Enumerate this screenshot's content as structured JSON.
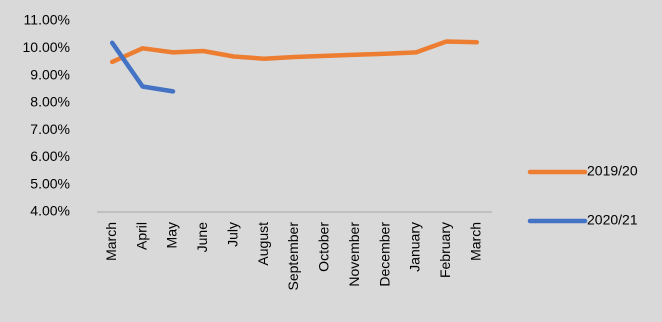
{
  "chart_data": {
    "type": "line",
    "categories": [
      "March",
      "April",
      "May",
      "June",
      "July",
      "August",
      "September",
      "October",
      "November",
      "December",
      "January",
      "February",
      "March"
    ],
    "series": [
      {
        "name": "2019/20",
        "color": "#ed7d31",
        "values": [
          9.5,
          10.0,
          9.85,
          9.9,
          9.7,
          9.62,
          9.68,
          9.72,
          9.76,
          9.8,
          9.85,
          10.25,
          10.22
        ]
      },
      {
        "name": "2020/21",
        "color": "#4472c4",
        "values": [
          10.2,
          8.6,
          8.42,
          null,
          null,
          null,
          null,
          null,
          null,
          null,
          null,
          null,
          null
        ]
      }
    ],
    "ylim": [
      4,
      11
    ],
    "yticks": [
      {
        "value": 4,
        "label": "4.00%"
      },
      {
        "value": 5,
        "label": "5.00%"
      },
      {
        "value": 6,
        "label": "6.00%"
      },
      {
        "value": 7,
        "label": "7.00%"
      },
      {
        "value": 8,
        "label": "8.00%"
      },
      {
        "value": 9,
        "label": "9.00%"
      },
      {
        "value": 10,
        "label": "10.00%"
      },
      {
        "value": 11,
        "label": "11.00%"
      }
    ],
    "legend": "right"
  }
}
